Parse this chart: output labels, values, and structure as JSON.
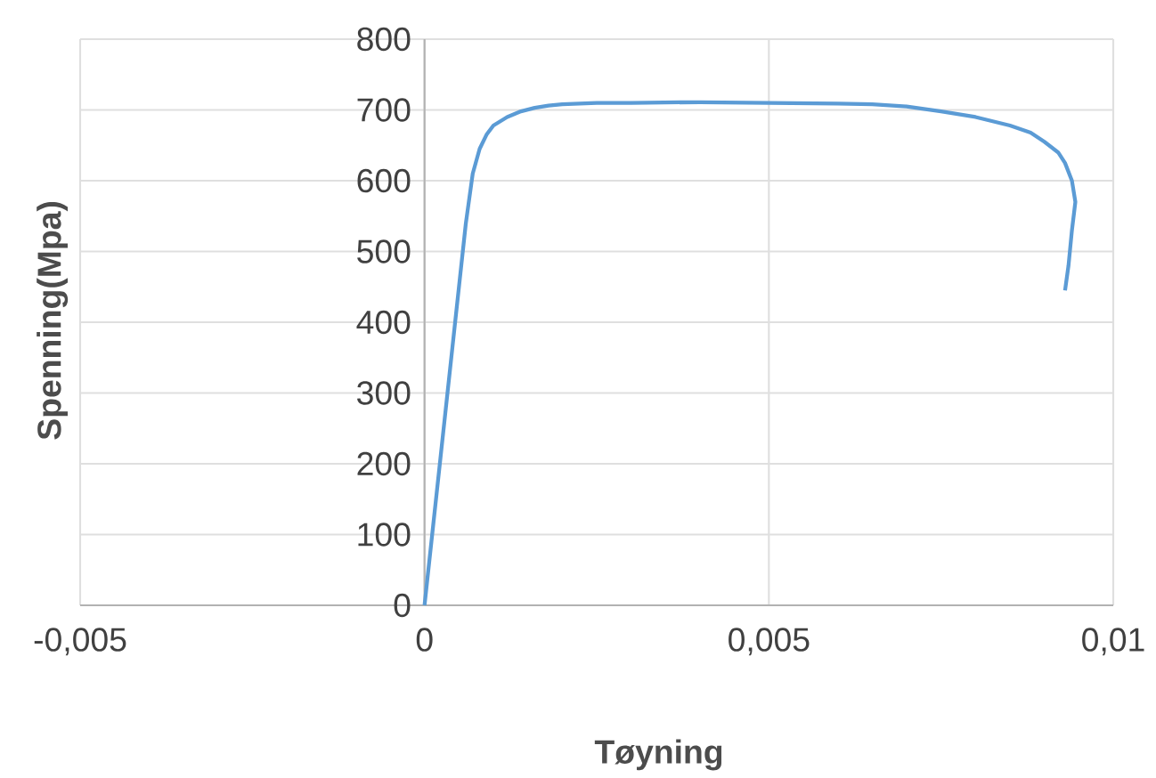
{
  "chart_data": {
    "type": "line",
    "xlabel": "Tøyning",
    "ylabel": "Spenning(Mpa)",
    "series": [
      {
        "color": "#5b9bd5",
        "x": [
          0,
          0.0001,
          0.0002,
          0.0003,
          0.0004,
          0.0005,
          0.0006,
          0.0007,
          0.0008,
          0.0009,
          0.001,
          0.0012,
          0.0014,
          0.0016,
          0.0018,
          0.002,
          0.0025,
          0.003,
          0.004,
          0.005,
          0.006,
          0.0065,
          0.007,
          0.0075,
          0.008,
          0.0085,
          0.0088,
          0.009,
          0.0092,
          0.0093,
          0.0094,
          0.00945,
          0.0094,
          0.00935,
          0.0093
        ],
        "values": [
          0,
          90,
          180,
          270,
          360,
          450,
          540,
          610,
          645,
          665,
          678,
          690,
          698,
          703,
          706,
          708,
          710,
          710,
          711,
          710,
          709,
          708,
          705,
          698,
          690,
          678,
          668,
          655,
          640,
          625,
          600,
          570,
          530,
          480,
          445
        ]
      }
    ],
    "xlim": [
      -0.005,
      0.01
    ],
    "ylim": [
      0,
      800
    ],
    "xticks": [
      {
        "value": -0.005,
        "label": "-0,005"
      },
      0,
      {
        "value": 0.005,
        "label": "0,005"
      },
      {
        "value": 0.01,
        "label": "0,01"
      }
    ],
    "yticks": [
      0,
      100,
      200,
      300,
      400,
      500,
      600,
      700,
      800
    ],
    "grid": true,
    "marker": "none",
    "line_style": "solid"
  }
}
